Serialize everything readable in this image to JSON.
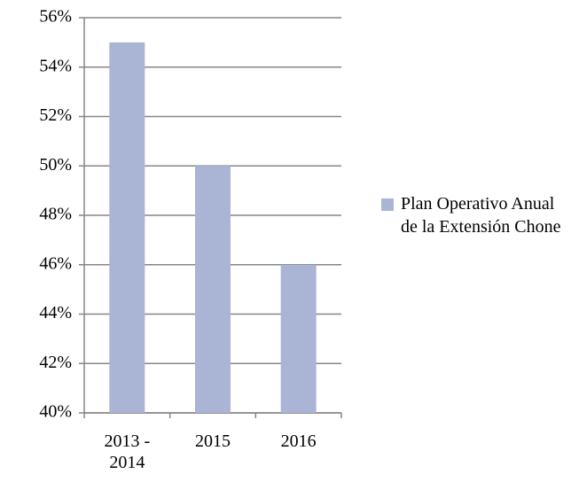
{
  "chart_data": {
    "type": "bar",
    "categories": [
      "2013 - 2014",
      "2015",
      "2016"
    ],
    "series": [
      {
        "name": "Plan Operativo Anual de la Extensión Chone",
        "color": "#aab5d6",
        "values": [
          55,
          50,
          46
        ]
      }
    ],
    "ylim": [
      40,
      56
    ],
    "yticks": [
      {
        "value": 40,
        "label": "40%"
      },
      {
        "value": 42,
        "label": "42%"
      },
      {
        "value": 44,
        "label": "44%"
      },
      {
        "value": 46,
        "label": "46%"
      },
      {
        "value": 48,
        "label": "48%"
      },
      {
        "value": 50,
        "label": "50%"
      },
      {
        "value": 52,
        "label": "52%"
      },
      {
        "value": 54,
        "label": "54%"
      },
      {
        "value": 56,
        "label": "56%"
      }
    ],
    "grid": true,
    "legend": "right"
  }
}
